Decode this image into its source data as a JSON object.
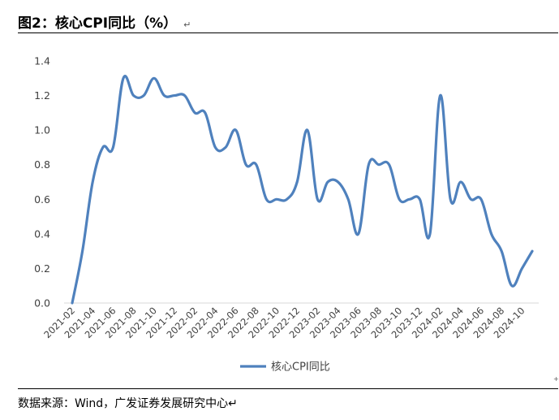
{
  "header": {
    "title": "图2：核心CPI同比（%）",
    "return_mark": "↵"
  },
  "footer": {
    "source": "数据来源：Wind，广发证券发展研究中心↵",
    "corner_mark": "+"
  },
  "colors": {
    "series": "#4F81BD",
    "axis": "#D9D9D9",
    "text": "#404040"
  },
  "chart_data": {
    "type": "line",
    "title": "",
    "xlabel": "",
    "ylabel": "",
    "ylim": [
      0,
      1.4
    ],
    "yticks": [
      "0.0",
      "0.2",
      "0.4",
      "0.6",
      "0.8",
      "1.0",
      "1.2",
      "1.4"
    ],
    "grid": false,
    "legend_position": "bottom",
    "x": [
      "2021-02",
      "2021-03",
      "2021-04",
      "2021-05",
      "2021-06",
      "2021-07",
      "2021-08",
      "2021-09",
      "2021-10",
      "2021-11",
      "2021-12",
      "2022-01",
      "2022-02",
      "2022-03",
      "2022-04",
      "2022-05",
      "2022-06",
      "2022-07",
      "2022-08",
      "2022-09",
      "2022-10",
      "2022-11",
      "2022-12",
      "2023-01",
      "2023-02",
      "2023-03",
      "2023-04",
      "2023-05",
      "2023-06",
      "2023-07",
      "2023-08",
      "2023-09",
      "2023-10",
      "2023-11",
      "2023-12",
      "2024-01",
      "2024-02",
      "2024-03",
      "2024-04",
      "2024-05",
      "2024-06",
      "2024-07",
      "2024-08",
      "2024-09",
      "2024-10",
      "2024-11"
    ],
    "xtick_labels": [
      "2021-02",
      "2021-04",
      "2021-06",
      "2021-08",
      "2021-10",
      "2021-12",
      "2022-02",
      "2022-04",
      "2022-06",
      "2022-08",
      "2022-10",
      "2022-12",
      "2023-02",
      "2023-04",
      "2023-06",
      "2023-08",
      "2023-10",
      "2023-12",
      "2024-02",
      "2024-04",
      "2024-06",
      "2024-08",
      "2024-10"
    ],
    "series": [
      {
        "name": "核心CPI同比",
        "values": [
          0.0,
          0.3,
          0.7,
          0.9,
          0.9,
          1.3,
          1.2,
          1.2,
          1.3,
          1.2,
          1.2,
          1.2,
          1.1,
          1.1,
          0.9,
          0.9,
          1.0,
          0.8,
          0.8,
          0.6,
          0.6,
          0.6,
          0.7,
          1.0,
          0.6,
          0.7,
          0.7,
          0.6,
          0.4,
          0.8,
          0.8,
          0.8,
          0.6,
          0.6,
          0.6,
          0.4,
          1.2,
          0.6,
          0.7,
          0.6,
          0.6,
          0.4,
          0.3,
          0.1,
          0.2,
          0.3
        ]
      }
    ]
  }
}
